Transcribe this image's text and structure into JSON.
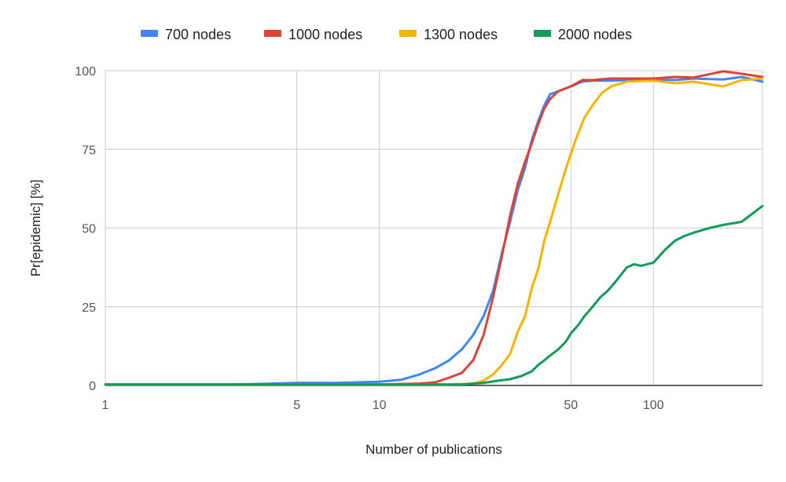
{
  "chart_data": {
    "type": "line",
    "title": "",
    "xlabel": "Number of publications",
    "ylabel": "Pr[epidemic] [%]",
    "x_scale": "log",
    "xlim": [
      1,
      250
    ],
    "ylim": [
      0,
      100
    ],
    "x_ticks": [
      1,
      5,
      10,
      50,
      100
    ],
    "x_tick_labels": [
      "1",
      "5",
      "10",
      "50",
      "100"
    ],
    "y_ticks": [
      0,
      25,
      50,
      75,
      100
    ],
    "y_tick_labels": [
      "0",
      "25",
      "50",
      "75",
      "100"
    ],
    "grid": true,
    "legend_position": "top",
    "series": [
      {
        "name": "700 nodes",
        "color": "#4285F4",
        "points": [
          [
            1,
            0.3
          ],
          [
            3,
            0.3
          ],
          [
            5,
            0.8
          ],
          [
            7,
            0.8
          ],
          [
            10,
            1.2
          ],
          [
            12,
            1.8
          ],
          [
            14,
            3.5
          ],
          [
            16,
            5.5
          ],
          [
            18,
            8.0
          ],
          [
            20,
            11.5
          ],
          [
            22,
            16.0
          ],
          [
            24,
            22.0
          ],
          [
            26,
            30.0
          ],
          [
            28,
            42.0
          ],
          [
            30,
            52.0
          ],
          [
            32,
            62.0
          ],
          [
            34,
            69.0
          ],
          [
            36,
            78.0
          ],
          [
            38,
            84.0
          ],
          [
            40,
            89.0
          ],
          [
            42,
            92.5
          ],
          [
            45,
            93.5
          ],
          [
            50,
            95.0
          ],
          [
            55,
            96.5
          ],
          [
            60,
            96.8
          ],
          [
            70,
            96.8
          ],
          [
            80,
            97.0
          ],
          [
            100,
            97.2
          ],
          [
            120,
            97.0
          ],
          [
            140,
            97.5
          ],
          [
            180,
            97.2
          ],
          [
            210,
            98.0
          ],
          [
            250,
            96.5
          ]
        ]
      },
      {
        "name": "1000 nodes",
        "color": "#DB4437",
        "points": [
          [
            1,
            0.3
          ],
          [
            5,
            0.3
          ],
          [
            10,
            0.3
          ],
          [
            14,
            0.6
          ],
          [
            16,
            1.0
          ],
          [
            18,
            2.5
          ],
          [
            20,
            4.0
          ],
          [
            22,
            8.0
          ],
          [
            24,
            16.0
          ],
          [
            26,
            28.0
          ],
          [
            28,
            41.0
          ],
          [
            30,
            54.0
          ],
          [
            32,
            64.0
          ],
          [
            34,
            71.0
          ],
          [
            36,
            77.0
          ],
          [
            38,
            83.0
          ],
          [
            40,
            88.0
          ],
          [
            42,
            91.0
          ],
          [
            45,
            93.5
          ],
          [
            50,
            95.0
          ],
          [
            55,
            97.0
          ],
          [
            60,
            97.0
          ],
          [
            70,
            97.5
          ],
          [
            80,
            97.5
          ],
          [
            100,
            97.5
          ],
          [
            120,
            98.0
          ],
          [
            140,
            97.8
          ],
          [
            180,
            99.8
          ],
          [
            210,
            99.0
          ],
          [
            250,
            98.0
          ]
        ]
      },
      {
        "name": "1300 nodes",
        "color": "#F4B400",
        "points": [
          [
            1,
            0.3
          ],
          [
            5,
            0.3
          ],
          [
            10,
            0.3
          ],
          [
            18,
            0.3
          ],
          [
            22,
            0.6
          ],
          [
            24,
            1.5
          ],
          [
            26,
            3.5
          ],
          [
            28,
            6.5
          ],
          [
            30,
            10.0
          ],
          [
            32,
            17.0
          ],
          [
            34,
            22.0
          ],
          [
            36,
            31.0
          ],
          [
            38,
            37.0
          ],
          [
            40,
            46.0
          ],
          [
            42,
            52.0
          ],
          [
            45,
            61.0
          ],
          [
            48,
            69.0
          ],
          [
            52,
            78.0
          ],
          [
            56,
            85.0
          ],
          [
            60,
            89.0
          ],
          [
            65,
            93.0
          ],
          [
            70,
            95.0
          ],
          [
            80,
            96.5
          ],
          [
            100,
            96.8
          ],
          [
            120,
            96.0
          ],
          [
            140,
            96.5
          ],
          [
            180,
            95.0
          ],
          [
            210,
            97.0
          ],
          [
            250,
            97.5
          ]
        ]
      },
      {
        "name": "2000 nodes",
        "color": "#0F9D58",
        "points": [
          [
            1,
            0.3
          ],
          [
            10,
            0.3
          ],
          [
            20,
            0.3
          ],
          [
            24,
            0.8
          ],
          [
            27,
            1.5
          ],
          [
            30,
            2.0
          ],
          [
            33,
            3.0
          ],
          [
            36,
            4.5
          ],
          [
            38,
            6.5
          ],
          [
            40,
            8.0
          ],
          [
            42,
            9.5
          ],
          [
            45,
            11.5
          ],
          [
            48,
            14.0
          ],
          [
            50,
            16.5
          ],
          [
            53,
            19.0
          ],
          [
            56,
            22.0
          ],
          [
            60,
            25.0
          ],
          [
            64,
            28.0
          ],
          [
            68,
            30.0
          ],
          [
            72,
            32.5
          ],
          [
            76,
            35.0
          ],
          [
            80,
            37.5
          ],
          [
            85,
            38.5
          ],
          [
            90,
            38.0
          ],
          [
            95,
            38.5
          ],
          [
            100,
            39.0
          ],
          [
            110,
            43.0
          ],
          [
            120,
            46.0
          ],
          [
            130,
            47.5
          ],
          [
            140,
            48.5
          ],
          [
            160,
            50.0
          ],
          [
            180,
            51.0
          ],
          [
            210,
            52.0
          ],
          [
            250,
            57.0
          ]
        ]
      }
    ]
  }
}
